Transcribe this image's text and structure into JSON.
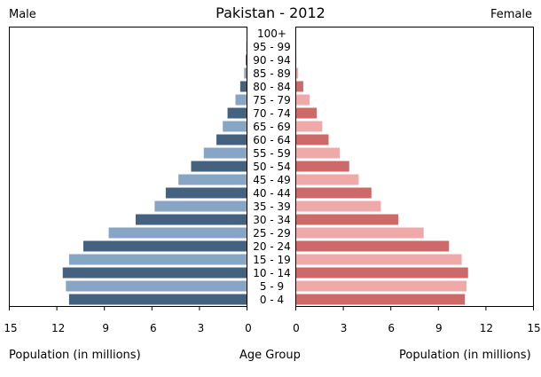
{
  "chart_data": {
    "type": "bar",
    "title": "Pakistan - 2012",
    "left_label": "Male",
    "right_label": "Female",
    "center_label": "Age Group",
    "xlabel_left": "Population (in millions)",
    "xlabel_right": "Population (in millions)",
    "xlim": [
      0,
      15
    ],
    "x_ticks": [
      "15",
      "12",
      "9",
      "6",
      "3",
      "0"
    ],
    "x_ticks_right": [
      "0",
      "3",
      "6",
      "9",
      "12",
      "15"
    ],
    "categories": [
      "100+",
      "95 - 99",
      "90 - 94",
      "85 - 89",
      "80 - 84",
      "75 - 79",
      "70 - 74",
      "65 - 69",
      "60 - 64",
      "55 - 59",
      "50 - 54",
      "45 - 49",
      "40 - 44",
      "35 - 39",
      "30 - 34",
      "25 - 29",
      "20 - 24",
      "15 - 19",
      "10 - 14",
      "5 - 9",
      "0 - 4"
    ],
    "series": [
      {
        "name": "Male",
        "values": [
          0.0,
          0.02,
          0.05,
          0.15,
          0.4,
          0.7,
          1.2,
          1.5,
          1.9,
          2.7,
          3.5,
          4.3,
          5.1,
          5.8,
          7.0,
          8.7,
          10.3,
          11.2,
          11.6,
          11.4,
          11.2
        ]
      },
      {
        "name": "Female",
        "values": [
          0.0,
          0.02,
          0.06,
          0.18,
          0.5,
          0.9,
          1.35,
          1.7,
          2.1,
          2.8,
          3.4,
          4.0,
          4.8,
          5.4,
          6.5,
          8.1,
          9.7,
          10.5,
          10.9,
          10.8,
          10.7
        ]
      }
    ],
    "colors": {
      "male_dark": "#44627f",
      "male_light": "#87a5c5",
      "female_dark": "#cd6969",
      "female_light": "#f0a9a9",
      "frame": "#000000"
    }
  }
}
